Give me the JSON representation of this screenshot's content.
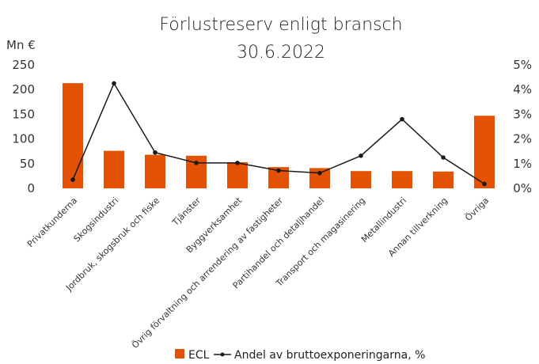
{
  "chart_data": {
    "type": "bar",
    "title": "Förlustreserv enligt bransch",
    "subtitle": "30.6.2022",
    "y_unit_label": "Mn €",
    "categories": [
      "Privatkunderna",
      "Skogsindustri",
      "Jordbruk, skogsbruk och fiske",
      "Tjänster",
      "Byggverksamhet",
      "Övrig förvaltning och arrendering av fastigheter",
      "Partihandel och detaljhandel",
      "Transport och magasinering",
      "Metallindustri",
      "Annan tillverkning",
      "Övriga"
    ],
    "series": [
      {
        "name": "ECL",
        "type": "bar",
        "axis": "left",
        "color": "#E35205",
        "values": [
          213,
          76,
          68,
          66,
          53,
          43,
          41,
          35,
          35,
          34,
          147
        ]
      },
      {
        "name": "Andel av bruttoexponeringarna, %",
        "type": "line",
        "axis": "right",
        "color": "#1a1a1a",
        "values": [
          0.35,
          4.25,
          1.45,
          1.03,
          1.03,
          0.72,
          0.62,
          1.32,
          2.8,
          1.25,
          0.18
        ]
      }
    ],
    "y_left": {
      "min": 0,
      "max": 250,
      "ticks": [
        "0",
        "50",
        "100",
        "150",
        "200",
        "250"
      ]
    },
    "y_right": {
      "min": 0,
      "max": 5,
      "ticks": [
        "0%",
        "1%",
        "2%",
        "3%",
        "4%",
        "5%"
      ]
    },
    "grid": false,
    "legend": {
      "position": "bottom",
      "items": [
        "ECL",
        "Andel av bruttoexponeringarna, %"
      ]
    }
  }
}
